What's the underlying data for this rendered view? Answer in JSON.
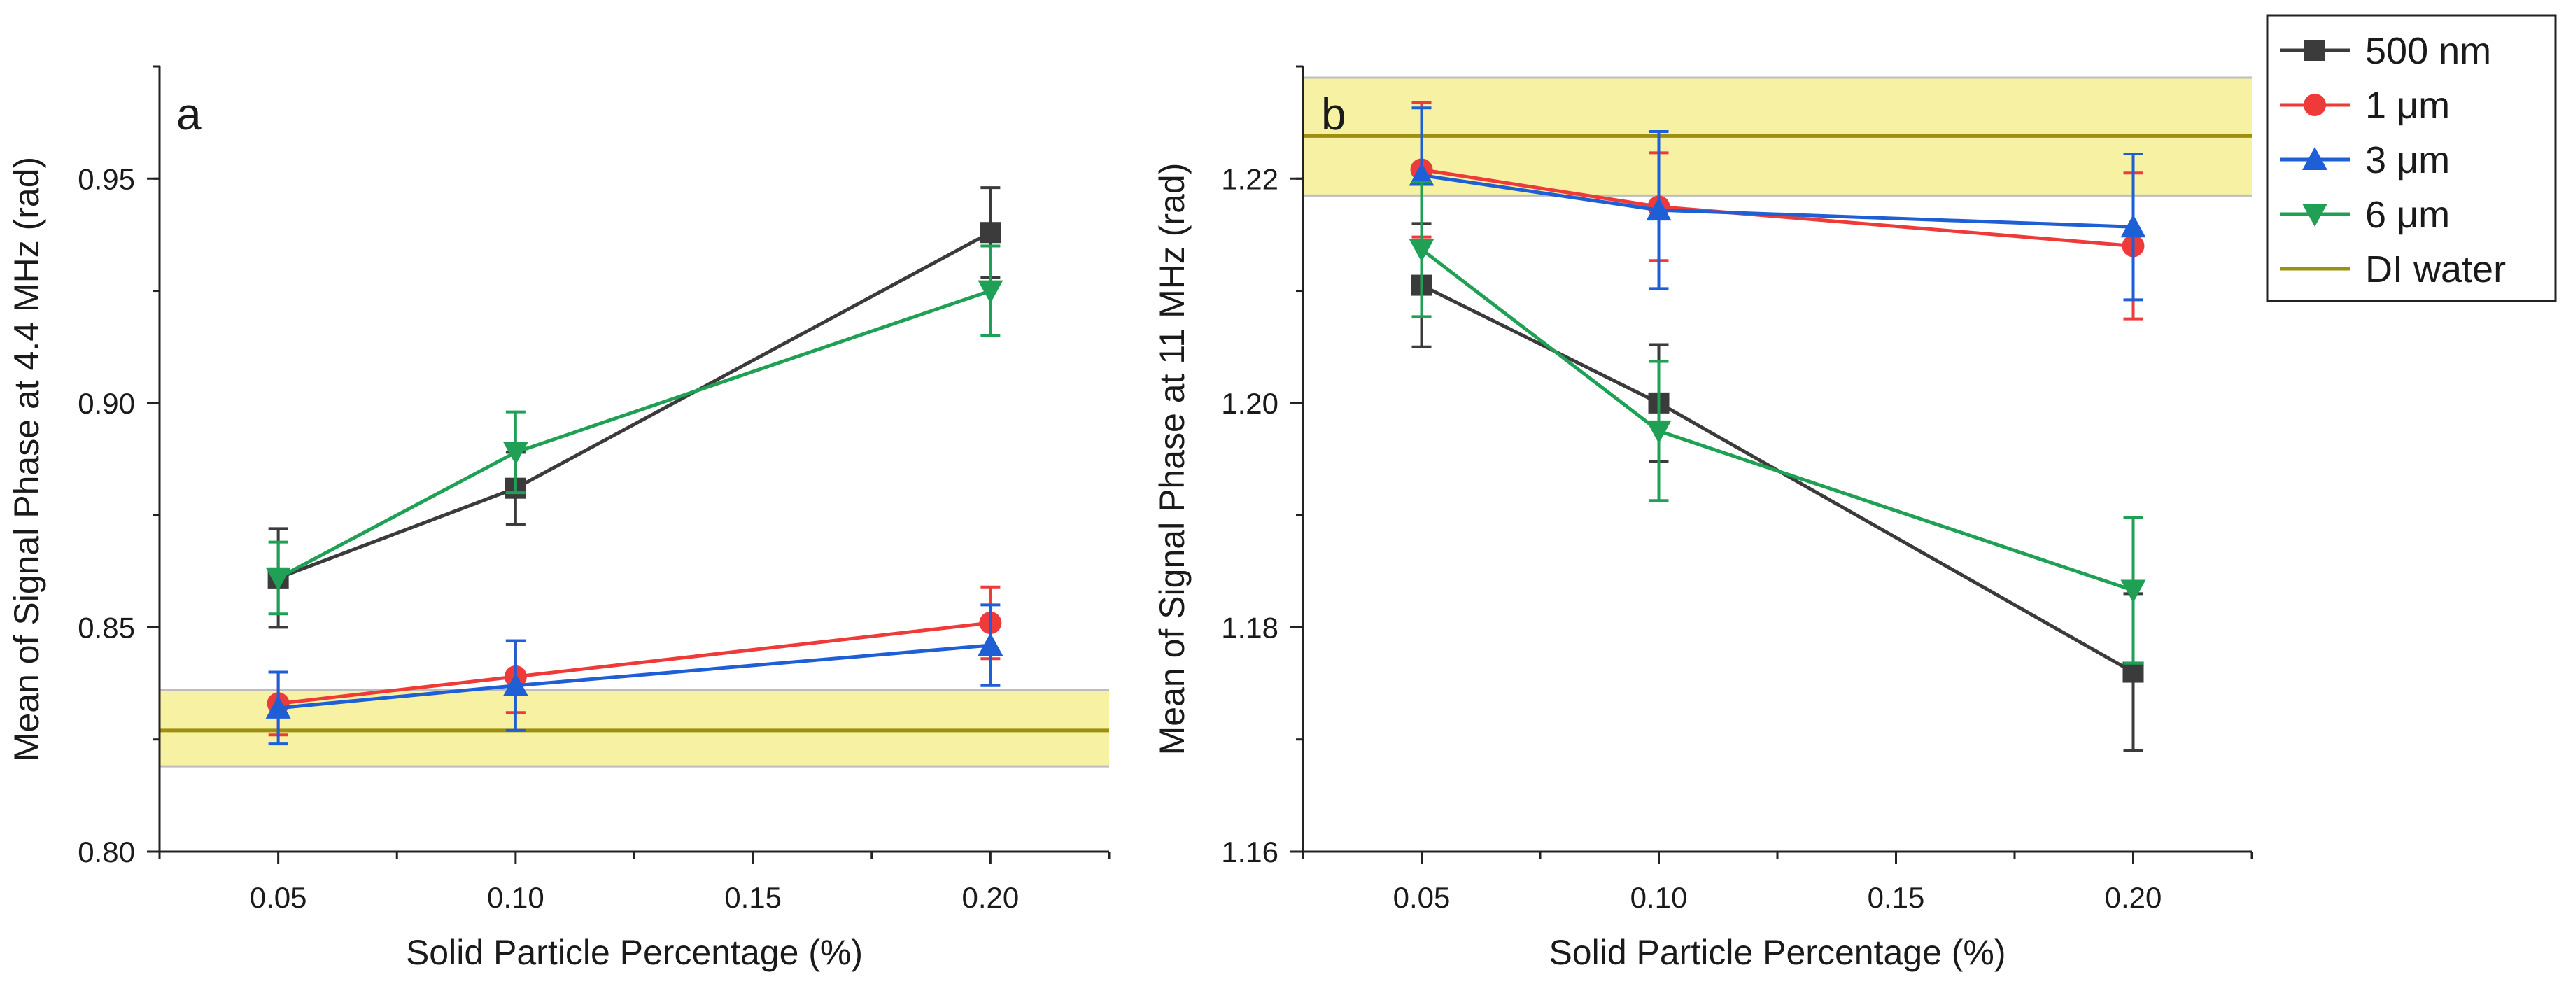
{
  "chart_data": [
    {
      "type": "line",
      "panel_label": "a",
      "xlabel": "Solid Particle Percentage (%)",
      "ylabel": "Mean of Signal Phase at 4.4 MHz (rad)",
      "xlim": [
        0.025,
        0.225
      ],
      "ylim": [
        0.8,
        0.975
      ],
      "xticks": [
        0.05,
        0.1,
        0.15,
        0.2
      ],
      "xtick_labels": [
        "0.05",
        "0.10",
        "0.15",
        "0.20"
      ],
      "yticks": [
        0.8,
        0.85,
        0.9,
        0.95
      ],
      "ytick_labels": [
        "0.80",
        "0.85",
        "0.90",
        "0.95"
      ],
      "x": [
        0.05,
        0.1,
        0.2
      ],
      "reference_band": {
        "name": "DI water",
        "center": 0.827,
        "lower": 0.819,
        "upper": 0.836,
        "color": "#9e8f12",
        "fill": "#f7f2a3"
      },
      "series": [
        {
          "name": "500 nm",
          "color": "#3b3b3b",
          "marker": "square",
          "values": [
            0.861,
            0.881,
            0.938
          ],
          "errors": [
            0.011,
            0.008,
            0.01
          ]
        },
        {
          "name": "1 μm",
          "color": "#ef3a3a",
          "marker": "circle",
          "values": [
            0.833,
            0.839,
            0.851
          ],
          "errors": [
            0.007,
            0.008,
            0.008
          ]
        },
        {
          "name": "3 μm",
          "color": "#1f5fd6",
          "marker": "triangle-up",
          "values": [
            0.832,
            0.837,
            0.846
          ],
          "errors": [
            0.008,
            0.01,
            0.009
          ]
        },
        {
          "name": "6 μm",
          "color": "#1fa055",
          "marker": "triangle-down",
          "values": [
            0.861,
            0.889,
            0.925
          ],
          "errors": [
            0.008,
            0.009,
            0.01
          ]
        }
      ]
    },
    {
      "type": "line",
      "panel_label": "b",
      "xlabel": "Solid Particle Percentage (%)",
      "ylabel": "Mean of Signal Phase at 11 MHz (rad)",
      "xlim": [
        0.025,
        0.225
      ],
      "ylim": [
        1.16,
        1.23
      ],
      "xticks": [
        0.05,
        0.1,
        0.15,
        0.2
      ],
      "xtick_labels": [
        "0.05",
        "0.10",
        "0.15",
        "0.20"
      ],
      "yticks": [
        1.16,
        1.18,
        1.2,
        1.22
      ],
      "ytick_labels": [
        "1.16",
        "1.18",
        "1.20",
        "1.22"
      ],
      "x": [
        0.05,
        0.1,
        0.2
      ],
      "reference_band": {
        "name": "DI water",
        "center": 1.2238,
        "lower": 1.2185,
        "upper": 1.229,
        "color": "#9e8f12",
        "fill": "#f7f2a3"
      },
      "series": [
        {
          "name": "500 nm",
          "color": "#3b3b3b",
          "marker": "square",
          "values": [
            1.2105,
            1.2,
            1.176
          ],
          "errors": [
            0.0055,
            0.0052,
            0.007
          ]
        },
        {
          "name": "1 μm",
          "color": "#ef3a3a",
          "marker": "circle",
          "values": [
            1.2208,
            1.2175,
            1.214
          ],
          "errors": [
            0.006,
            0.0048,
            0.0065
          ]
        },
        {
          "name": "3 μm",
          "color": "#1f5fd6",
          "marker": "triangle-up",
          "values": [
            1.2203,
            1.2172,
            1.2157
          ],
          "errors": [
            0.006,
            0.007,
            0.0065
          ]
        },
        {
          "name": "6 μm",
          "color": "#1fa055",
          "marker": "triangle-down",
          "values": [
            1.2137,
            1.1975,
            1.1833
          ],
          "errors": [
            0.006,
            0.0062,
            0.0065
          ]
        }
      ]
    }
  ],
  "legend": {
    "placement": "top-right",
    "items": [
      {
        "label": "500 nm",
        "color": "#3b3b3b",
        "marker": "square"
      },
      {
        "label": "1 μm",
        "color": "#ef3a3a",
        "marker": "circle"
      },
      {
        "label": "3 μm",
        "color": "#1f5fd6",
        "marker": "triangle-up"
      },
      {
        "label": "6 μm",
        "color": "#1fa055",
        "marker": "triangle-down"
      },
      {
        "label": "DI water",
        "color": "#9e8f12",
        "marker": "line"
      }
    ]
  }
}
